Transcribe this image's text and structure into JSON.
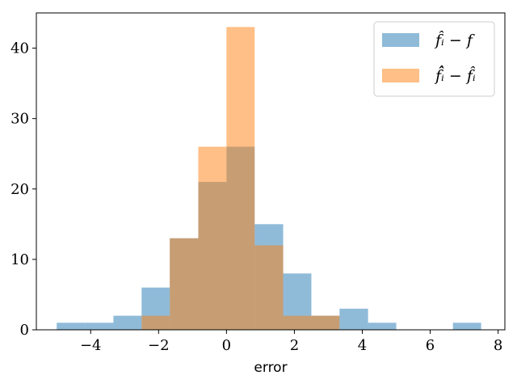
{
  "chart_data": {
    "type": "histogram",
    "xlabel": "error",
    "ylabel": "",
    "xlim": [
      -5.6,
      8.2
    ],
    "ylim": [
      0,
      45
    ],
    "xticks": [
      -4,
      -2,
      0,
      2,
      4,
      6,
      8
    ],
    "yticks": [
      0,
      10,
      20,
      30,
      40
    ],
    "legend_position": "top-right",
    "colors": {
      "series1": "#1f77b4",
      "series2": "#ff7f0e"
    },
    "series": [
      {
        "name": "f̂ᵢ − f",
        "bins": [
          {
            "x0": -5.0,
            "x1": -4.17,
            "count": 1
          },
          {
            "x0": -4.17,
            "x1": -3.33,
            "count": 1
          },
          {
            "x0": -3.33,
            "x1": -2.5,
            "count": 2
          },
          {
            "x0": -2.5,
            "x1": -1.67,
            "count": 6
          },
          {
            "x0": -1.67,
            "x1": -0.83,
            "count": 13
          },
          {
            "x0": -0.83,
            "x1": 0.0,
            "count": 21
          },
          {
            "x0": 0.0,
            "x1": 0.83,
            "count": 26
          },
          {
            "x0": 0.83,
            "x1": 1.67,
            "count": 15
          },
          {
            "x0": 1.67,
            "x1": 2.5,
            "count": 8
          },
          {
            "x0": 2.5,
            "x1": 3.33,
            "count": 2
          },
          {
            "x0": 3.33,
            "x1": 4.17,
            "count": 3
          },
          {
            "x0": 4.17,
            "x1": 5.0,
            "count": 1
          },
          {
            "x0": 5.0,
            "x1": 5.83,
            "count": 0
          },
          {
            "x0": 5.83,
            "x1": 6.67,
            "count": 0
          },
          {
            "x0": 6.67,
            "x1": 7.5,
            "count": 1
          }
        ]
      },
      {
        "name": "f̂̂ᵢ − f̂ᵢ",
        "bins": [
          {
            "x0": -2.5,
            "x1": -1.67,
            "count": 2
          },
          {
            "x0": -1.67,
            "x1": -0.83,
            "count": 13
          },
          {
            "x0": -0.83,
            "x1": 0.0,
            "count": 26
          },
          {
            "x0": 0.0,
            "x1": 0.83,
            "count": 43
          },
          {
            "x0": 0.83,
            "x1": 1.67,
            "count": 12
          },
          {
            "x0": 1.67,
            "x1": 2.5,
            "count": 2
          },
          {
            "x0": 2.5,
            "x1": 3.33,
            "count": 2
          }
        ]
      }
    ]
  }
}
